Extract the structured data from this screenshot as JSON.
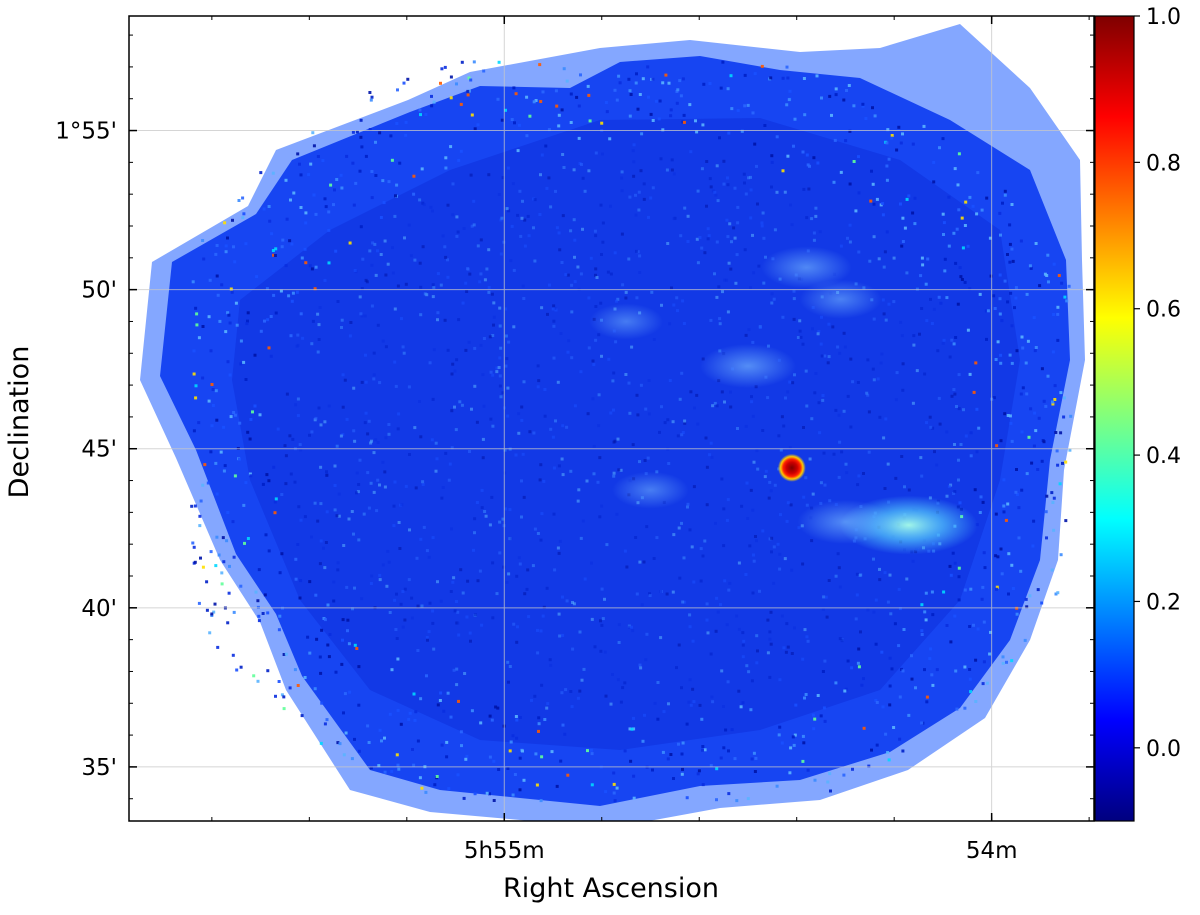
{
  "chart_data": {
    "type": "heatmap",
    "title": "",
    "xlabel": "Right Ascension",
    "ylabel": "Declination",
    "x_ticks": [
      {
        "label": "5h55m",
        "ra_min": 55.0
      },
      {
        "label": "54m",
        "ra_min": 54.0
      }
    ],
    "y_ticks": [
      {
        "label": "35'",
        "dec_arcmin": 95
      },
      {
        "label": "40'",
        "dec_arcmin": 100
      },
      {
        "label": "45'",
        "dec_arcmin": 105
      },
      {
        "label": "50'",
        "dec_arcmin": 110
      },
      {
        "label": "1°55'",
        "dec_arcmin": 115
      }
    ],
    "xlim_ra_min": [
      55.77,
      53.79
    ],
    "ylim_dec_arcmin": [
      93.3,
      118.6
    ],
    "grid": true,
    "colormap": "jet",
    "colorbar": {
      "range": [
        -0.1,
        1.0
      ],
      "ticks": [
        {
          "label": "0.0",
          "value": 0.0
        },
        {
          "label": "0.2",
          "value": 0.2
        },
        {
          "label": "0.4",
          "value": 0.4
        },
        {
          "label": "0.6",
          "value": 0.6
        },
        {
          "label": "0.8",
          "value": 0.8
        },
        {
          "label": "1.0",
          "value": 1.0
        }
      ],
      "colors": [
        "#00007f",
        "#0000ff",
        "#007fff",
        "#00ffff",
        "#7fff7f",
        "#ffff00",
        "#ff7f00",
        "#ff0000",
        "#7f0000"
      ]
    },
    "background_level": 0.06,
    "features": [
      {
        "kind": "point source",
        "ra_min": 54.41,
        "dec_arcmin": 104.4,
        "peak": 1.0
      },
      {
        "kind": "extended emission",
        "ra_min": 54.17,
        "dec_arcmin": 102.6,
        "peak": 0.35
      },
      {
        "kind": "extended emission",
        "ra_min": 54.3,
        "dec_arcmin": 102.7,
        "peak": 0.2
      },
      {
        "kind": "extended emission",
        "ra_min": 54.5,
        "dec_arcmin": 107.6,
        "peak": 0.2
      },
      {
        "kind": "extended emission",
        "ra_min": 54.38,
        "dec_arcmin": 110.7,
        "peak": 0.18
      },
      {
        "kind": "extended emission",
        "ra_min": 54.31,
        "dec_arcmin": 109.7,
        "peak": 0.15
      },
      {
        "kind": "extended emission",
        "ra_min": 54.7,
        "dec_arcmin": 103.7,
        "peak": 0.13
      },
      {
        "kind": "extended emission",
        "ra_min": 54.75,
        "dec_arcmin": 109.0,
        "peak": 0.12
      }
    ]
  }
}
